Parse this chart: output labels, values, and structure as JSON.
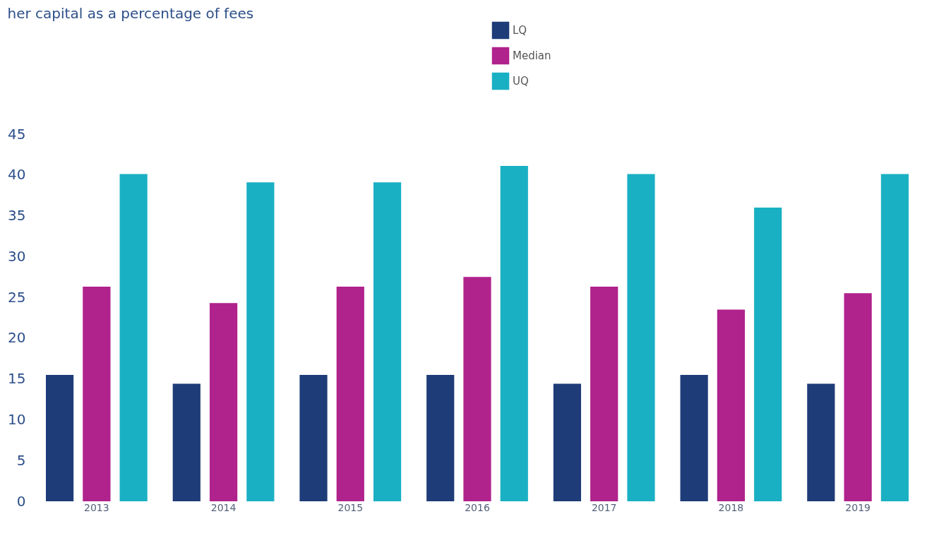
{
  "chart_data": {
    "type": "bar",
    "title": "her capital as a percentage of fees",
    "categories": [
      "2013",
      "2014",
      "2015",
      "2016",
      "2017",
      "2018",
      "2019"
    ],
    "series": [
      {
        "name": "LQ",
        "color": "#1e3c78",
        "values": [
          15.5,
          14.4,
          15.5,
          15.5,
          14.4,
          15.5,
          14.4
        ]
      },
      {
        "name": "Median",
        "color": "#b0228c",
        "values": [
          26.3,
          24.3,
          26.3,
          27.5,
          26.3,
          23.5,
          25.5
        ]
      },
      {
        "name": "UQ",
        "color": "#1ab0c4",
        "values": [
          40.1,
          39.1,
          39.1,
          41.1,
          40.1,
          36.0,
          40.1
        ]
      }
    ],
    "ylim": [
      0,
      45
    ],
    "yticks": [
      0,
      5,
      10,
      15,
      20,
      25,
      30,
      35,
      40,
      45
    ],
    "grid": false,
    "legend": "top"
  }
}
